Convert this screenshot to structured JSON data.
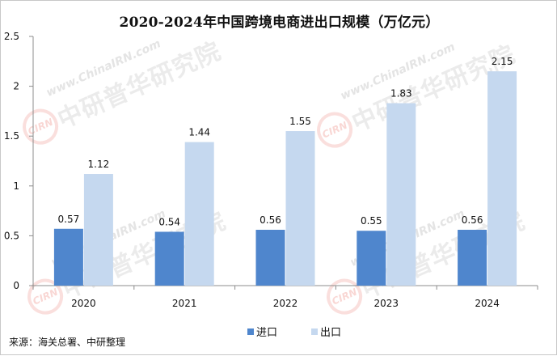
{
  "watermark": {
    "badge": "CIRN",
    "url": "www.ChinaIRN.com",
    "name": "中研普华研究院"
  },
  "source": "来源：海关总署、中研整理",
  "colors": {
    "import": "#4f86cd",
    "export": "#c5d8ef",
    "axis": "#8c8c8c",
    "text": "#111111"
  },
  "chart_data": {
    "type": "bar",
    "title": "2020-2024年中国跨境电商进出口规模（万亿元）",
    "categories": [
      "2020",
      "2021",
      "2022",
      "2023",
      "2024"
    ],
    "series": [
      {
        "name": "进口",
        "values": [
          0.57,
          0.54,
          0.56,
          0.55,
          0.56
        ]
      },
      {
        "name": "出口",
        "values": [
          1.12,
          1.44,
          1.55,
          1.83,
          2.15
        ]
      }
    ],
    "data_labels": [
      [
        "0.57",
        "0.54",
        "0.56",
        "0.55",
        "0.56"
      ],
      [
        "1.12",
        "1.44",
        "1.55",
        "1.83",
        "2.15"
      ]
    ],
    "ylim": [
      0,
      2.5
    ],
    "yticks": [
      "0",
      "0.5",
      "1",
      "1.5",
      "2",
      "2.5"
    ],
    "xlabel": "",
    "ylabel": "",
    "grid": false,
    "legend": "bottom-center"
  }
}
